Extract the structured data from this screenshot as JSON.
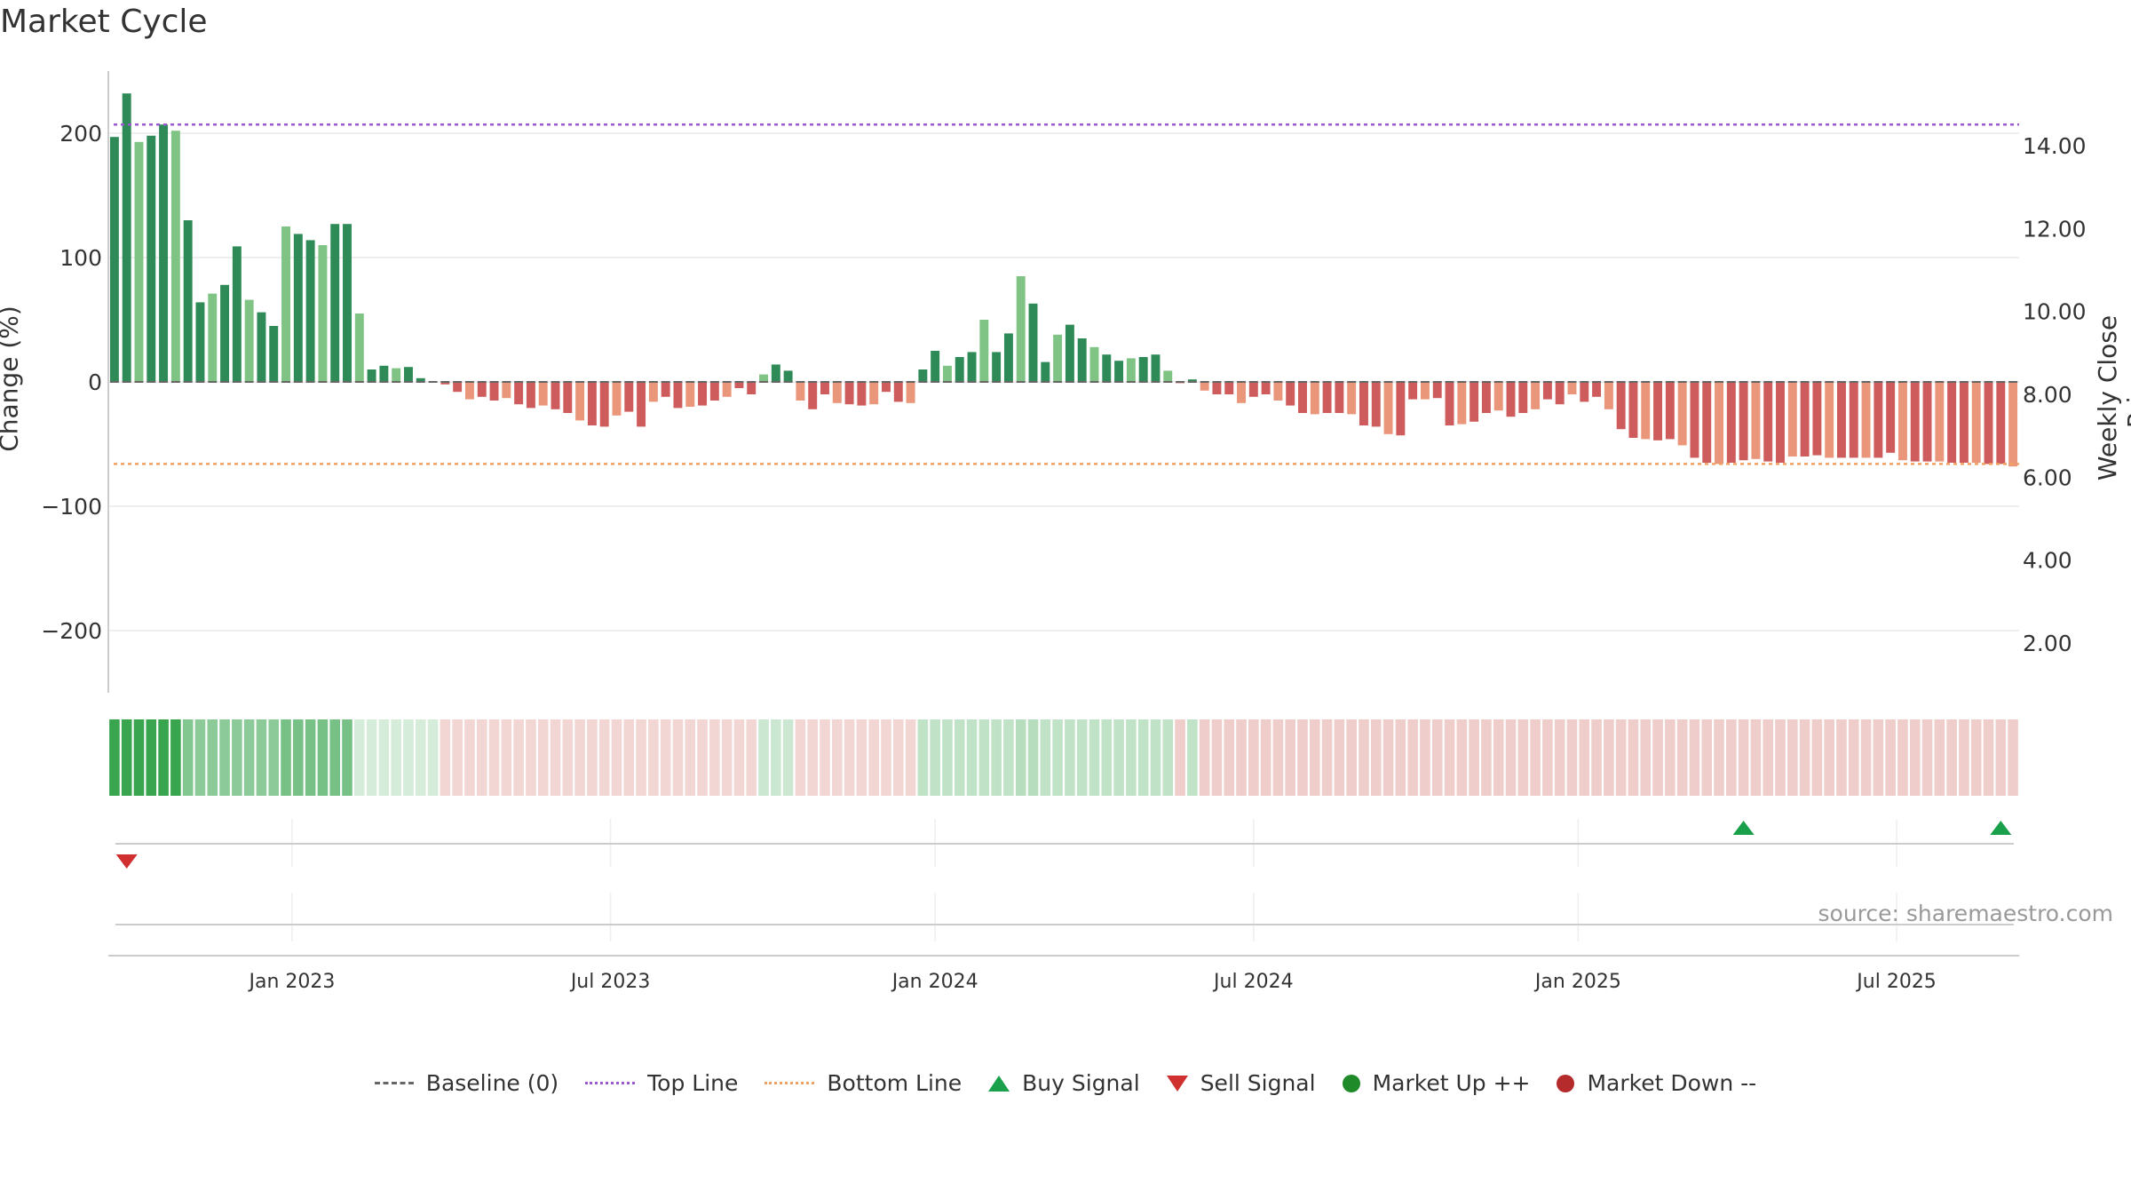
{
  "title": "Market Cycle",
  "source": "source: sharemaestro.com",
  "legend": [
    {
      "label": "Baseline (0)",
      "icon": "baseline-dash"
    },
    {
      "label": "Top Line",
      "icon": "top-dotted-line"
    },
    {
      "label": "Bottom Line",
      "icon": "bottom-dotted-line"
    },
    {
      "label": "Buy Signal",
      "icon": "triangle-up"
    },
    {
      "label": "Sell Signal",
      "icon": "triangle-down"
    },
    {
      "label": "Market Up ++",
      "icon": "green-dot"
    },
    {
      "label": "Market Down --",
      "icon": "red-dot"
    }
  ],
  "colors": {
    "up_strong": "#2e8b57",
    "up_light": "#7fc484",
    "down_strong": "#cf5c5c",
    "down_light": "#e9967a",
    "top_line": "#9b59d0",
    "bottom_line": "#f0a060",
    "buy": "#1aa04a",
    "sell": "#d03030",
    "grid": "#e8e8e8",
    "axis": "#cccccc"
  },
  "chart_data": {
    "type": "bar",
    "ylabel_left": "Change (%)",
    "ylabel_right": "Weekly Close Price",
    "yticks_left": [
      "200",
      "100",
      "0",
      "−100",
      "−200"
    ],
    "yticks_left_values": [
      200,
      100,
      0,
      -100,
      -200
    ],
    "yticks_right": [
      "14.00",
      "12.00",
      "10.00",
      "8.00",
      "6.00",
      "4.00",
      "2.00"
    ],
    "yticks_right_values": [
      14,
      12,
      10,
      8,
      6,
      4,
      2
    ],
    "ylim_left": [
      -250,
      250
    ],
    "ylim_right": [
      0.8,
      15.8
    ],
    "x_ticks": [
      "Jan 2023",
      "Jul 2023",
      "Jan 2024",
      "Jul 2024",
      "Jan 2025",
      "Jul 2025"
    ],
    "x_tick_weeks": [
      15,
      41,
      67.5,
      93.5,
      120,
      146
    ],
    "top_line": 207,
    "bottom_line": -66,
    "series": [
      {
        "kind": "weekly_change_percent",
        "values": [
          197,
          232,
          193,
          198,
          207,
          202,
          130,
          64,
          71,
          78,
          109,
          66,
          56,
          45,
          125,
          119,
          114,
          110,
          127,
          127,
          55,
          10,
          13,
          11,
          12,
          3,
          0,
          -2,
          -8,
          -14,
          -12,
          -15,
          -13,
          -18,
          -21,
          -19,
          -22,
          -25,
          -31,
          -35,
          -36,
          -27,
          -24,
          -36,
          -16,
          -12,
          -21,
          -20,
          -19,
          -15,
          -12,
          -5,
          -10,
          6,
          14,
          9,
          -15,
          -22,
          -10,
          -17,
          -18,
          -19,
          -18,
          -8,
          -16,
          -17,
          10,
          25,
          13,
          20,
          24,
          50,
          24,
          39,
          85,
          63,
          16,
          38,
          46,
          35,
          28,
          22,
          17,
          19,
          20,
          22,
          9,
          -1,
          2,
          -7,
          -10,
          -10,
          -17,
          -12,
          -10,
          -15,
          -19,
          -25,
          -26,
          -25,
          -25,
          -26,
          -35,
          -36,
          -42,
          -43,
          -14,
          -14,
          -13,
          -35,
          -34,
          -32,
          -25,
          -23,
          -28,
          -25,
          -22,
          -14,
          -18,
          -10,
          -16,
          -12,
          -22,
          -38,
          -45,
          -46,
          -47,
          -46,
          -51,
          -61,
          -65,
          -66,
          -65,
          -63,
          -62,
          -64,
          -65,
          -60,
          -60,
          -59,
          -61,
          -61,
          -61,
          -61,
          -61,
          -57,
          -63,
          -64,
          -64,
          -64,
          -65,
          -65,
          -65,
          -66,
          -66,
          -68
        ]
      },
      {
        "kind": "signal_band_intensity_0_to_1",
        "values": [
          0.95,
          0.95,
          0.95,
          0.95,
          0.95,
          0.95,
          0.6,
          0.55,
          0.55,
          0.55,
          0.55,
          0.55,
          0.55,
          0.55,
          0.65,
          0.65,
          0.65,
          0.65,
          0.65,
          0.65,
          0.2,
          0.2,
          0.2,
          0.2,
          0.2,
          0.2,
          0.2,
          0.25,
          0.25,
          0.25,
          0.25,
          0.25,
          0.25,
          0.25,
          0.25,
          0.25,
          0.25,
          0.25,
          0.25,
          0.25,
          0.25,
          0.25,
          0.25,
          0.25,
          0.25,
          0.25,
          0.25,
          0.25,
          0.25,
          0.25,
          0.25,
          0.25,
          0.25,
          0.25,
          0.25,
          0.25,
          0.25,
          0.25,
          0.25,
          0.25,
          0.25,
          0.25,
          0.25,
          0.25,
          0.25,
          0.25,
          0.3,
          0.3,
          0.3,
          0.3,
          0.3,
          0.3,
          0.3,
          0.3,
          0.35,
          0.35,
          0.3,
          0.3,
          0.3,
          0.3,
          0.3,
          0.3,
          0.3,
          0.3,
          0.3,
          0.3,
          0.3,
          0.3,
          0.3,
          0.3,
          0.3,
          0.3,
          0.3,
          0.3,
          0.3,
          0.3,
          0.3,
          0.3,
          0.3,
          0.3,
          0.3,
          0.3,
          0.3,
          0.3,
          0.3,
          0.3,
          0.3,
          0.3,
          0.3,
          0.3,
          0.3,
          0.3,
          0.3,
          0.3,
          0.3,
          0.3,
          0.3,
          0.3,
          0.3,
          0.3,
          0.3,
          0.3,
          0.3,
          0.3,
          0.3,
          0.3,
          0.3,
          0.3,
          0.3,
          0.3,
          0.3,
          0.3,
          0.3,
          0.3,
          0.3,
          0.3,
          0.3,
          0.3,
          0.3,
          0.3,
          0.3,
          0.3,
          0.3,
          0.3,
          0.3,
          0.3,
          0.3,
          0.3,
          0.3,
          0.3,
          0.3,
          0.3,
          0.3,
          0.3,
          0.3,
          0.3,
          0.3,
          0.3,
          0.3,
          0.3,
          0.3,
          0.3,
          0.3
        ]
      }
    ],
    "buy_signals_week": [
      133.5,
      154.5
    ],
    "sell_signals_week": [
      1.5
    ]
  }
}
